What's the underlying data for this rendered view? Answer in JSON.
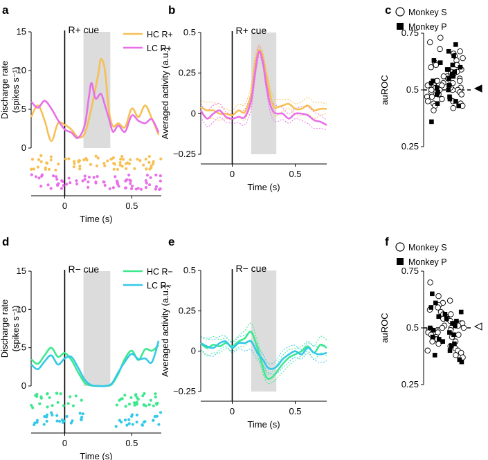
{
  "figure": {
    "colors": {
      "hc_plus": "#F6C054",
      "lc_plus": "#E86FE8",
      "hc_minus": "#3DE88E",
      "lc_minus": "#33C8E8",
      "shade": "#DCDCDC"
    }
  },
  "chart_data": [
    {
      "panel": "a",
      "type": "line",
      "title": "R+ cue",
      "xlabel": "Time (s)",
      "ylabel": "Discharge rate",
      "ylabel2": "(spikes s⁻¹)",
      "xlim": [
        -0.25,
        0.72
      ],
      "ylim": [
        0,
        15
      ],
      "yticks": [
        0,
        5,
        10,
        15
      ],
      "yticklabels": [
        "0",
        "5",
        "10",
        "15"
      ],
      "xticks": [
        0,
        0.5
      ],
      "xticklabels": [
        "0",
        "0.5"
      ],
      "shade": [
        0.14,
        0.34
      ],
      "series": [
        {
          "name": "HC R+",
          "color_key": "hc_plus",
          "x": [
            -0.25,
            -0.2,
            -0.15,
            -0.1,
            -0.05,
            0,
            0.05,
            0.1,
            0.15,
            0.2,
            0.25,
            0.27,
            0.3,
            0.33,
            0.36,
            0.4,
            0.45,
            0.5,
            0.55,
            0.6,
            0.65,
            0.7
          ],
          "y": [
            4.0,
            5.5,
            3.6,
            0.9,
            3.2,
            3.0,
            2.4,
            1.4,
            1.9,
            5.2,
            9.5,
            11.5,
            10.0,
            4.8,
            2.8,
            3.2,
            2.7,
            5.1,
            4.0,
            5.5,
            3.8,
            1.7
          ]
        },
        {
          "name": "LC R+",
          "color_key": "lc_plus",
          "x": [
            -0.25,
            -0.2,
            -0.15,
            -0.1,
            -0.05,
            0,
            0.05,
            0.1,
            0.15,
            0.18,
            0.2,
            0.23,
            0.27,
            0.3,
            0.33,
            0.36,
            0.4,
            0.45,
            0.5,
            0.55,
            0.6,
            0.65,
            0.7
          ],
          "y": [
            6.0,
            5.2,
            6.1,
            5.1,
            3.6,
            2.4,
            2.0,
            1.3,
            3.0,
            6.5,
            8.4,
            6.4,
            7.0,
            5.5,
            3.8,
            2.1,
            2.9,
            2.1,
            4.2,
            3.5,
            3.2,
            3.7,
            2.0
          ]
        }
      ]
    },
    {
      "panel": "b",
      "type": "line",
      "title": "R+ cue",
      "xlabel": "Time (s)",
      "ylabel": "Averaged activity (a.u.)",
      "xlim": [
        -0.25,
        0.75
      ],
      "ylim": [
        -0.25,
        0.5
      ],
      "yticks": [
        -0.25,
        0,
        0.25,
        0.5
      ],
      "yticklabels": [
        "−0.25",
        "0",
        "0.25",
        "0.5"
      ],
      "xticks": [
        0,
        0.5
      ],
      "xticklabels": [
        "0",
        "0.5"
      ],
      "shade": [
        0.15,
        0.35
      ],
      "band": 0.04,
      "series": [
        {
          "name": "HC R+",
          "color_key": "hc_plus",
          "x": [
            -0.25,
            -0.2,
            -0.15,
            -0.1,
            -0.05,
            0,
            0.05,
            0.1,
            0.15,
            0.18,
            0.21,
            0.24,
            0.27,
            0.3,
            0.33,
            0.36,
            0.4,
            0.45,
            0.5,
            0.55,
            0.6,
            0.65,
            0.7,
            0.75
          ],
          "y": [
            0.04,
            0.02,
            0.02,
            0.0,
            0.0,
            -0.01,
            0.02,
            0.01,
            0.12,
            0.3,
            0.39,
            0.36,
            0.24,
            0.12,
            0.04,
            0.04,
            0.05,
            0.06,
            0.03,
            0.03,
            0.05,
            0.02,
            0.03,
            0.03
          ]
        },
        {
          "name": "LC R+",
          "color_key": "lc_plus",
          "x": [
            -0.25,
            -0.2,
            -0.15,
            -0.1,
            -0.05,
            0,
            0.05,
            0.1,
            0.15,
            0.18,
            0.21,
            0.24,
            0.27,
            0.3,
            0.33,
            0.36,
            0.4,
            0.45,
            0.5,
            0.55,
            0.6,
            0.65,
            0.7,
            0.75
          ],
          "y": [
            0.02,
            -0.03,
            0.0,
            0.02,
            -0.02,
            -0.03,
            -0.02,
            -0.02,
            0.08,
            0.25,
            0.38,
            0.33,
            0.18,
            0.06,
            0.01,
            0.0,
            0.0,
            -0.03,
            0.0,
            0.0,
            -0.01,
            -0.04,
            -0.05,
            -0.07
          ]
        }
      ]
    },
    {
      "panel": "c",
      "type": "scatter",
      "ylabel": "auROC",
      "ylim": [
        0.25,
        0.75
      ],
      "yticks": [
        0.25,
        0.5,
        0.75
      ],
      "yticklabels": [
        "0.25",
        "0.5",
        "0.75"
      ],
      "reference": 0.5,
      "marker": "filled",
      "legend": [
        "Monkey S",
        "Monkey P"
      ],
      "monkey_s": [
        0.73,
        0.71,
        0.68,
        0.67,
        0.66,
        0.65,
        0.64,
        0.63,
        0.62,
        0.61,
        0.61,
        0.6,
        0.59,
        0.58,
        0.58,
        0.57,
        0.56,
        0.56,
        0.55,
        0.55,
        0.54,
        0.54,
        0.53,
        0.53,
        0.52,
        0.52,
        0.52,
        0.51,
        0.51,
        0.5,
        0.5,
        0.5,
        0.49,
        0.49,
        0.48,
        0.48,
        0.47,
        0.47,
        0.46,
        0.45,
        0.45,
        0.44,
        0.44,
        0.43,
        0.43,
        0.42,
        0.41,
        0.5,
        0.51,
        0.52
      ],
      "monkey_p": [
        0.7,
        0.67,
        0.65,
        0.63,
        0.62,
        0.61,
        0.6,
        0.59,
        0.59,
        0.58,
        0.57,
        0.56,
        0.55,
        0.54,
        0.53,
        0.52,
        0.51,
        0.5,
        0.49,
        0.48,
        0.47,
        0.46,
        0.45,
        0.44,
        0.43,
        0.36
      ]
    },
    {
      "panel": "d",
      "type": "line",
      "title": "R− cue",
      "xlabel": "Time (s)",
      "ylabel": "Discharge rate",
      "ylabel2": "(spikes s⁻¹)",
      "xlim": [
        -0.25,
        0.72
      ],
      "ylim": [
        0,
        15
      ],
      "yticks": [
        0,
        5,
        10,
        15
      ],
      "yticklabels": [
        "0",
        "5",
        "10",
        "15"
      ],
      "xticks": [
        0,
        0.5
      ],
      "xticklabels": [
        "0",
        "0.5"
      ],
      "shade": [
        0.14,
        0.34
      ],
      "series": [
        {
          "name": "HC R−",
          "color_key": "hc_minus",
          "x": [
            -0.25,
            -0.2,
            -0.15,
            -0.1,
            -0.05,
            0,
            0.05,
            0.1,
            0.15,
            0.2,
            0.25,
            0.3,
            0.35,
            0.4,
            0.45,
            0.5,
            0.55,
            0.6,
            0.65,
            0.7
          ],
          "y": [
            3.5,
            2.9,
            4.0,
            5.0,
            3.8,
            4.3,
            3.4,
            1.8,
            0.4,
            0.05,
            0.0,
            0.0,
            0.2,
            1.6,
            3.6,
            4.6,
            3.4,
            4.8,
            4.6,
            5.3
          ]
        },
        {
          "name": "LC R−",
          "color_key": "lc_minus",
          "x": [
            -0.25,
            -0.2,
            -0.15,
            -0.1,
            -0.05,
            0,
            0.05,
            0.1,
            0.15,
            0.2,
            0.25,
            0.3,
            0.35,
            0.4,
            0.45,
            0.5,
            0.55,
            0.6,
            0.65,
            0.7
          ],
          "y": [
            2.8,
            2.2,
            3.2,
            4.0,
            2.8,
            3.6,
            3.8,
            2.4,
            0.8,
            0.1,
            0.0,
            0.0,
            0.3,
            1.8,
            3.2,
            4.2,
            3.5,
            3.6,
            3.1,
            5.9
          ]
        }
      ]
    },
    {
      "panel": "e",
      "type": "line",
      "title": "R− cue",
      "xlabel": "Time (s)",
      "ylabel": "Averaged activity (a.u.)",
      "xlim": [
        -0.25,
        0.75
      ],
      "ylim": [
        -0.25,
        0.5
      ],
      "yticks": [
        -0.25,
        0,
        0.25,
        0.5
      ],
      "yticklabels": [
        "−0.25",
        "0",
        "0.25",
        "0.5"
      ],
      "xticks": [
        0,
        0.5
      ],
      "xticklabels": [
        "0",
        "0.5"
      ],
      "shade": [
        0.15,
        0.35
      ],
      "band": 0.04,
      "series": [
        {
          "name": "HC R−",
          "color_key": "hc_minus",
          "x": [
            -0.25,
            -0.2,
            -0.15,
            -0.1,
            -0.05,
            0,
            0.05,
            0.1,
            0.15,
            0.2,
            0.25,
            0.28,
            0.32,
            0.36,
            0.4,
            0.45,
            0.5,
            0.55,
            0.6,
            0.65,
            0.7,
            0.75
          ],
          "y": [
            0.05,
            0.02,
            0.04,
            0.03,
            0.05,
            0.03,
            0.06,
            0.08,
            0.12,
            0.02,
            -0.12,
            -0.17,
            -0.16,
            -0.12,
            -0.08,
            -0.04,
            -0.02,
            0.0,
            0.03,
            -0.01,
            0.04,
            0.02
          ]
        },
        {
          "name": "LC R−",
          "color_key": "lc_minus",
          "x": [
            -0.25,
            -0.2,
            -0.15,
            -0.1,
            -0.05,
            0,
            0.05,
            0.1,
            0.15,
            0.2,
            0.25,
            0.28,
            0.32,
            0.36,
            0.4,
            0.45,
            0.5,
            0.55,
            0.6,
            0.65,
            0.7,
            0.75
          ],
          "y": [
            0.05,
            0.03,
            0.02,
            0.05,
            0.06,
            0.02,
            0.05,
            0.05,
            0.06,
            -0.01,
            -0.06,
            -0.1,
            -0.11,
            -0.09,
            -0.05,
            -0.02,
            0.0,
            -0.02,
            0.02,
            -0.01,
            -0.02,
            -0.01
          ]
        }
      ]
    },
    {
      "panel": "f",
      "type": "scatter",
      "ylabel": "auROC",
      "ylim": [
        0.25,
        0.75
      ],
      "yticks": [
        0.25,
        0.5,
        0.75
      ],
      "yticklabels": [
        "0.25",
        "0.5",
        "0.75"
      ],
      "reference": 0.5,
      "marker": "open",
      "legend": [
        "Monkey S",
        "Monkey P"
      ],
      "monkey_s": [
        0.7,
        0.64,
        0.62,
        0.61,
        0.6,
        0.59,
        0.58,
        0.57,
        0.56,
        0.56,
        0.55,
        0.54,
        0.54,
        0.53,
        0.52,
        0.52,
        0.51,
        0.51,
        0.5,
        0.5,
        0.5,
        0.49,
        0.49,
        0.48,
        0.48,
        0.47,
        0.47,
        0.46,
        0.46,
        0.45,
        0.45,
        0.44,
        0.44,
        0.43,
        0.42,
        0.41,
        0.4,
        0.4,
        0.39,
        0.38,
        0.37
      ],
      "monkey_p": [
        0.65,
        0.61,
        0.59,
        0.57,
        0.56,
        0.55,
        0.54,
        0.53,
        0.52,
        0.51,
        0.5,
        0.49,
        0.48,
        0.47,
        0.46,
        0.45,
        0.44,
        0.43,
        0.42,
        0.4,
        0.38,
        0.36,
        0.35
      ]
    }
  ]
}
